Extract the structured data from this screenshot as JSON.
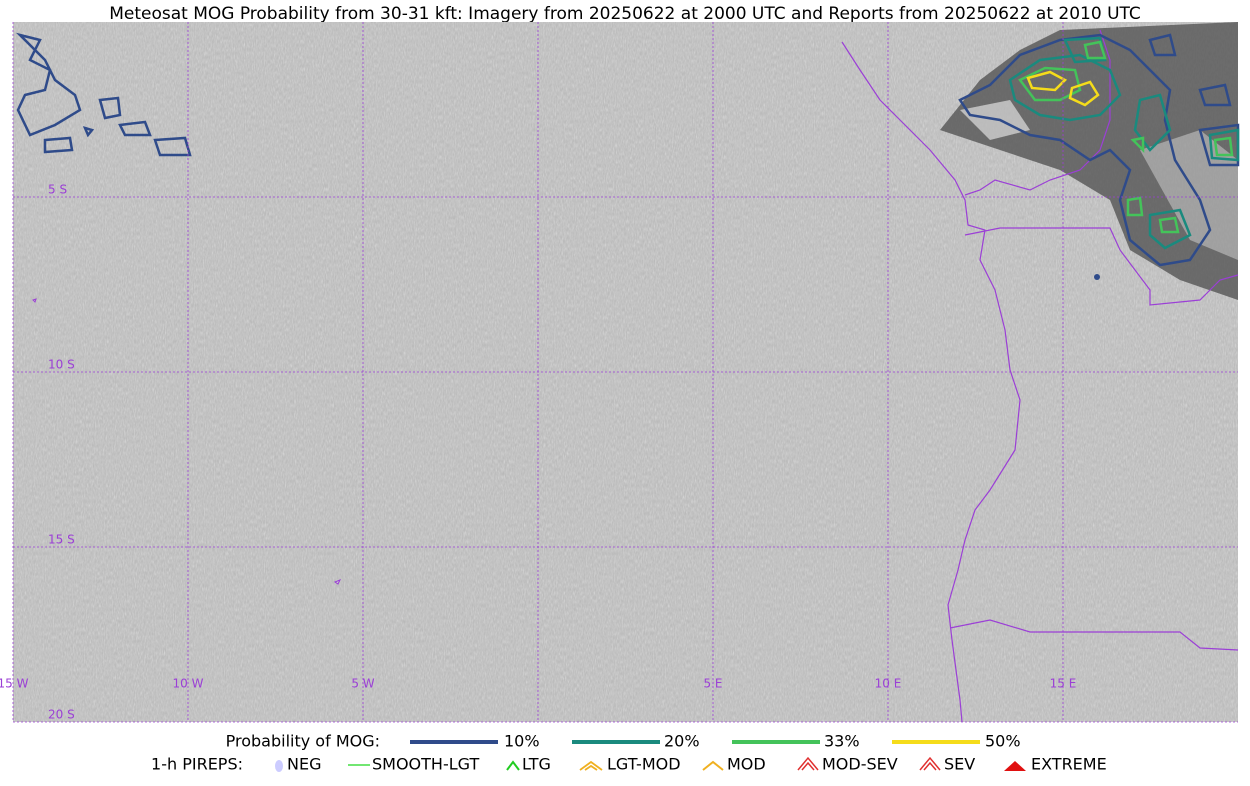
{
  "title": "Meteosat MOG Probability from 30-31 kft: Imagery from 20250622 at 2000 UTC and Reports from 20250622 at 2010 UTC",
  "grid_labels": {
    "lat": [
      "5 S",
      "10 S",
      "15 S",
      "20 S"
    ],
    "lon": [
      "15 W",
      "10 W",
      "5 W",
      "5 E",
      "10 E",
      "15 E"
    ]
  },
  "legend": {
    "probability": {
      "label": "Probability of MOG:",
      "items": [
        "10%",
        "20%",
        "33%",
        "50%"
      ]
    },
    "pireps": {
      "label": "1-h PIREPS:",
      "items": [
        "NEG",
        "SMOOTH-LGT",
        "LTG",
        "LGT-MOD",
        "MOD",
        "MOD-SEV",
        "SEV",
        "EXTREME"
      ]
    }
  }
}
